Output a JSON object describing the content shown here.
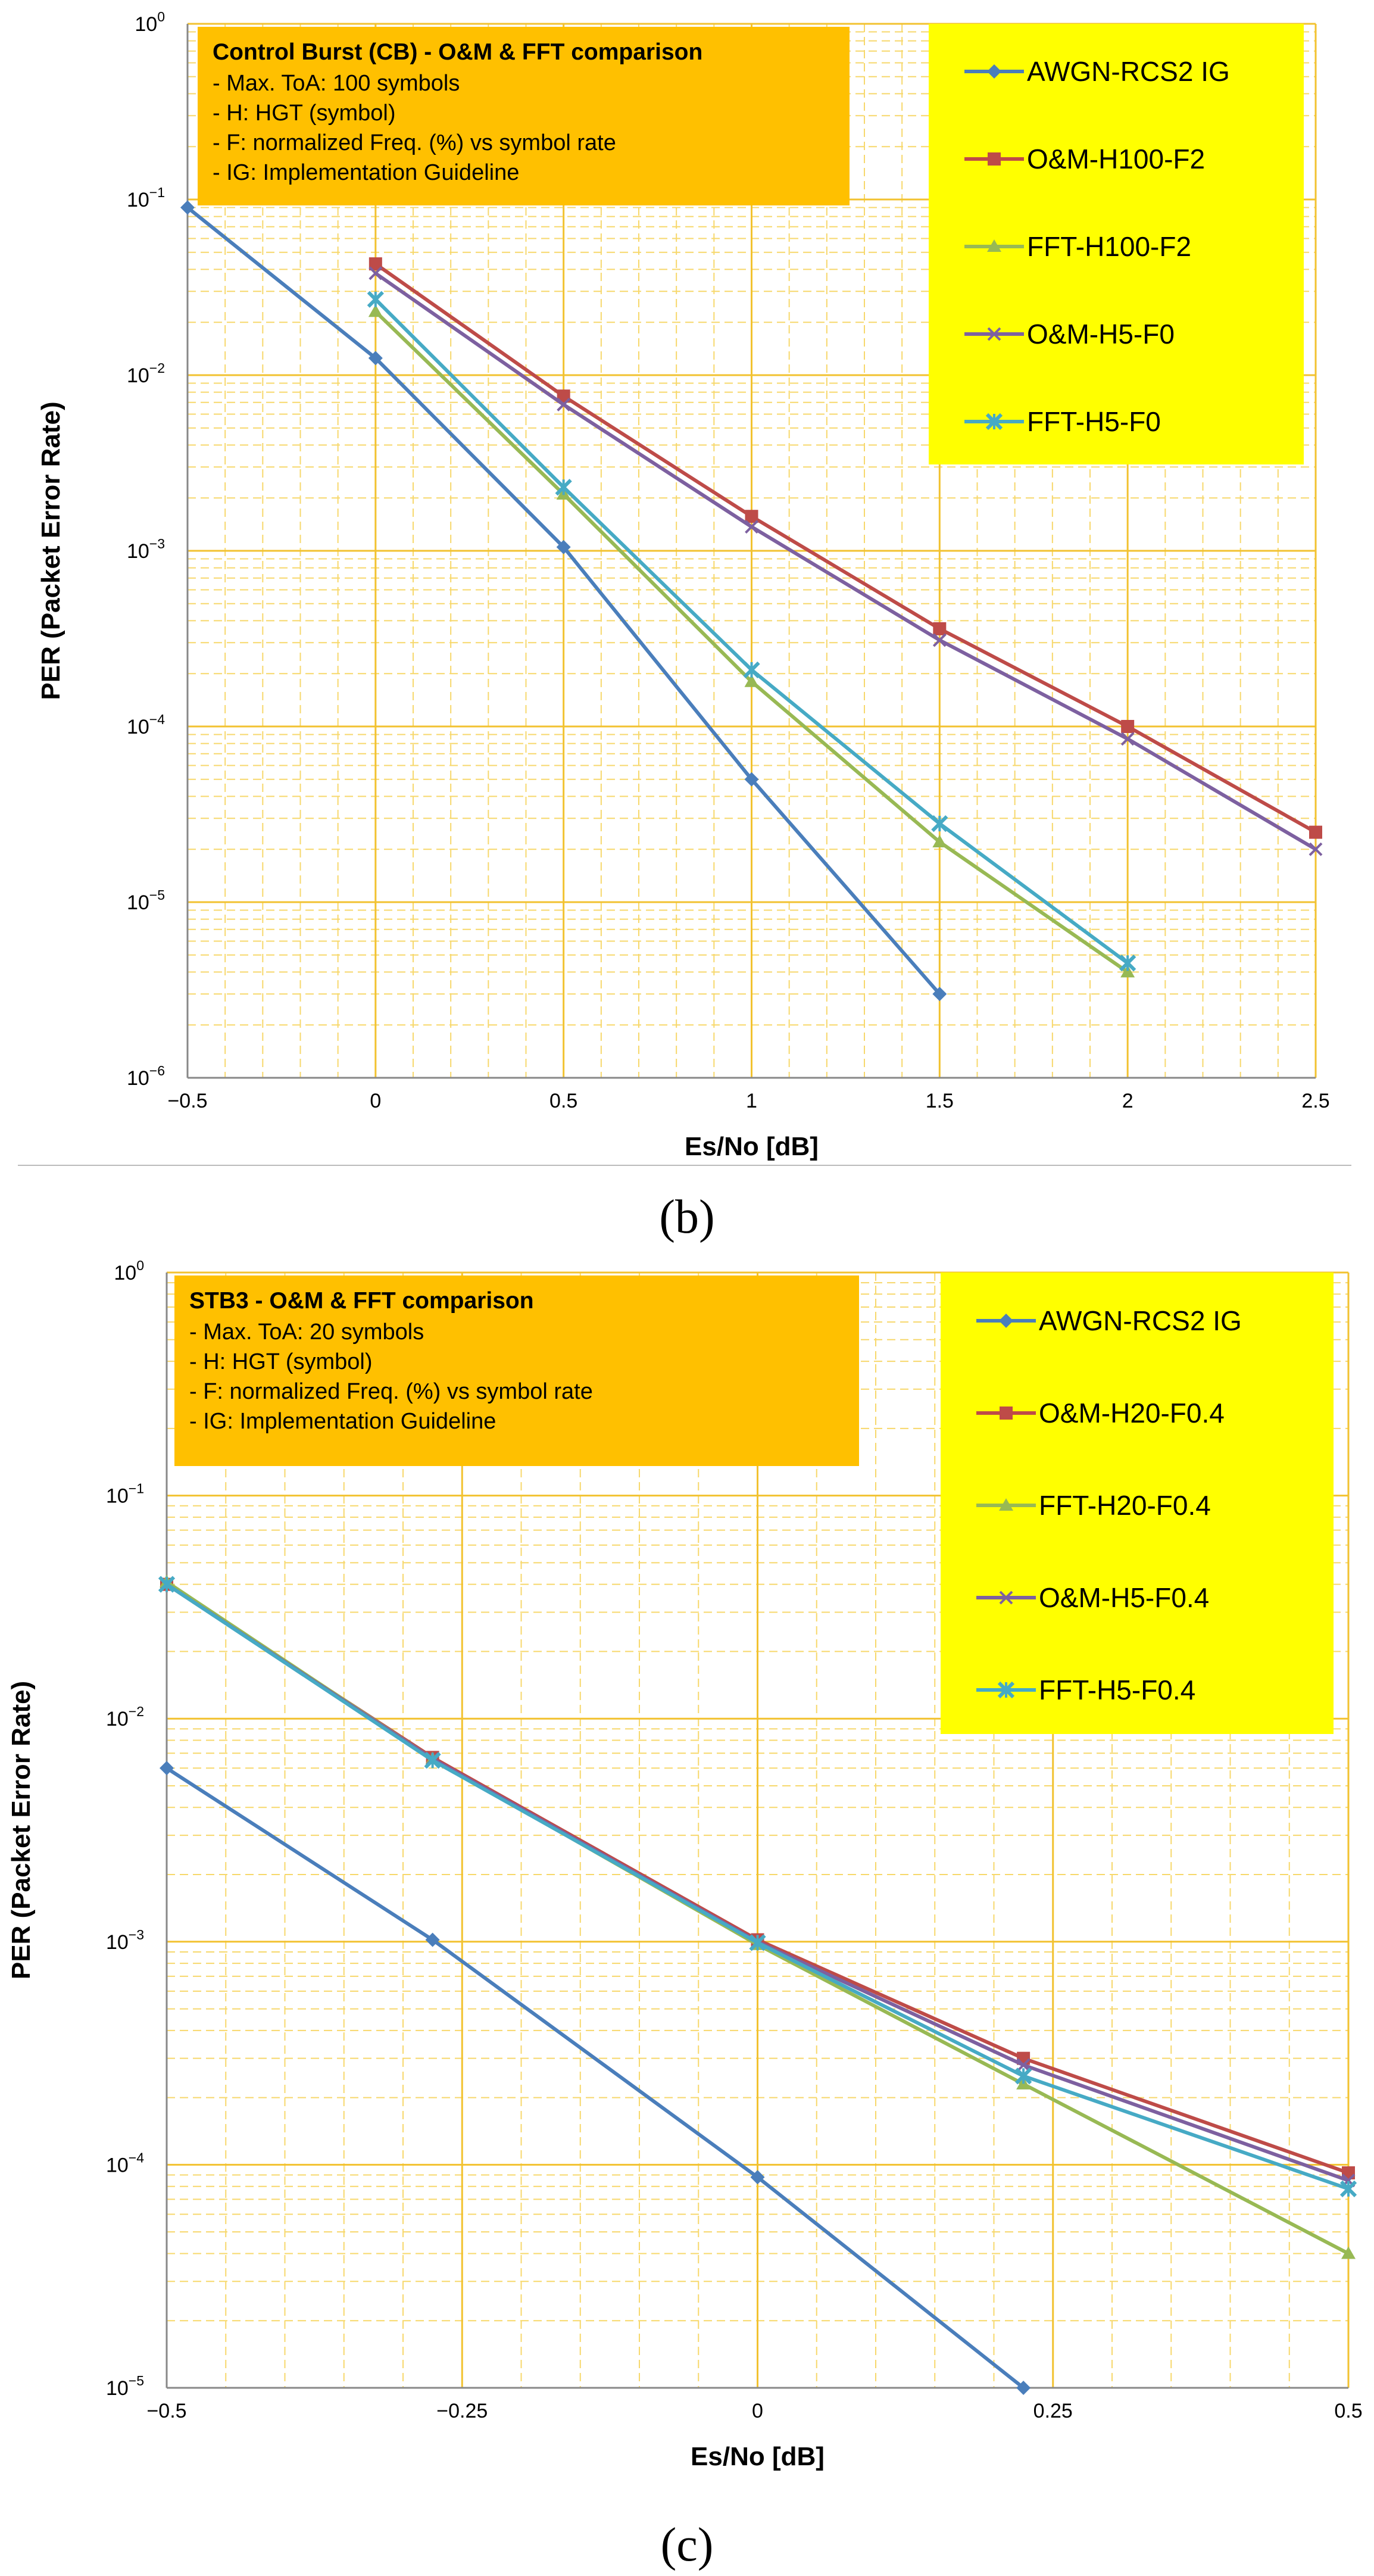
{
  "chart_data": [
    {
      "type": "line",
      "panel_label": "(b)",
      "y_scale": "log",
      "ylim": [
        1e-06,
        1
      ],
      "xlim": [
        -0.5,
        2.5
      ],
      "x_ticks": [
        "−0.5",
        "0",
        "0.5",
        "1",
        "1.5",
        "2",
        "2.5"
      ],
      "xlabel": "Es/No [dB]",
      "ylabel": "PER (Packet Error Rate)",
      "grid": true,
      "info_box": {
        "title": "Control Burst (CB) - O&M & FFT comparison",
        "lines": [
          "- Max. ToA: 100 symbols",
          "- H: HGT (symbol)",
          "- F: normalized Freq. (%) vs symbol rate",
          "- IG: Implementation Guideline"
        ]
      },
      "legend_position": "top-right",
      "series": [
        {
          "name": "AWGN-RCS2 IG",
          "color": "#4a7ebb",
          "marker": "diamond",
          "x": [
            -0.5,
            0,
            0.5,
            1,
            1.5
          ],
          "y": [
            0.09,
            0.0125,
            0.00105,
            5e-05,
            3e-06
          ]
        },
        {
          "name": "O&M-H100-F2",
          "color": "#be4b48",
          "marker": "square",
          "x": [
            0,
            0.5,
            1,
            1.5,
            2,
            2.5
          ],
          "y": [
            0.043,
            0.0076,
            0.00157,
            0.00036,
            0.0001,
            2.5e-05
          ]
        },
        {
          "name": "FFT-H100-F2",
          "color": "#98b954",
          "marker": "triangle",
          "x": [
            0,
            0.5,
            1,
            1.5,
            2
          ],
          "y": [
            0.023,
            0.0021,
            0.00018,
            2.2e-05,
            4e-06
          ]
        },
        {
          "name": "O&M-H5-F0",
          "color": "#7d60a0",
          "marker": "x",
          "x": [
            0,
            0.5,
            1,
            1.5,
            2,
            2.5
          ],
          "y": [
            0.038,
            0.0068,
            0.00137,
            0.00031,
            8.5e-05,
            2e-05
          ]
        },
        {
          "name": "FFT-H5-F0",
          "color": "#46aac5",
          "marker": "star",
          "x": [
            0,
            0.5,
            1,
            1.5,
            2
          ],
          "y": [
            0.027,
            0.0023,
            0.00021,
            2.8e-05,
            4.5e-06
          ]
        }
      ]
    },
    {
      "type": "line",
      "panel_label": "(c)",
      "y_scale": "log",
      "ylim": [
        1e-05,
        1
      ],
      "xlim": [
        -0.5,
        0.5
      ],
      "x_ticks": [
        "−0.5",
        "−0.25",
        "0",
        "0.25",
        "0.5"
      ],
      "xlabel": "Es/No [dB]",
      "ylabel": "PER (Packet Error Rate)",
      "grid": true,
      "info_box": {
        "title": "STB3 - O&M & FFT comparison",
        "lines": [
          "- Max. ToA: 20 symbols",
          "- H: HGT (symbol)",
          "- F: normalized Freq. (%) vs symbol rate",
          "- IG: Implementation Guideline"
        ]
      },
      "legend_position": "top-right",
      "series": [
        {
          "name": "AWGN-RCS2 IG",
          "color": "#4a7ebb",
          "marker": "diamond",
          "x": [
            -0.5,
            -0.275,
            0,
            0.225
          ],
          "y": [
            0.006,
            0.00102,
            8.8e-05,
            1e-05
          ]
        },
        {
          "name": "O&M-H20-F0.4",
          "color": "#be4b48",
          "marker": "square",
          "x": [
            -0.5,
            -0.275,
            0,
            0.225,
            0.5
          ],
          "y": [
            0.04,
            0.0067,
            0.00102,
            0.0003,
            9.2e-05
          ]
        },
        {
          "name": "FFT-H20-F0.4",
          "color": "#98b954",
          "marker": "triangle",
          "x": [
            -0.5,
            -0.275,
            0,
            0.225,
            0.5
          ],
          "y": [
            0.041,
            0.0066,
            0.00097,
            0.00023,
            4e-05
          ]
        },
        {
          "name": "O&M-H5-F0.4",
          "color": "#7d60a0",
          "marker": "x",
          "x": [
            -0.5,
            -0.275,
            0,
            0.225,
            0.5
          ],
          "y": [
            0.04,
            0.0066,
            0.001,
            0.00028,
            8.5e-05
          ]
        },
        {
          "name": "FFT-H5-F0.4",
          "color": "#46aac5",
          "marker": "star",
          "x": [
            -0.5,
            -0.275,
            0,
            0.225,
            0.5
          ],
          "y": [
            0.04,
            0.0065,
            0.00099,
            0.00025,
            7.8e-05
          ]
        }
      ]
    }
  ],
  "colors": {
    "plot_background": "#ffffff",
    "grid_major": "#f2c230",
    "grid_minor": "#f7d86c",
    "info_box": "#ffc000",
    "legend_box": "#ffff00",
    "axis": "#888888"
  }
}
